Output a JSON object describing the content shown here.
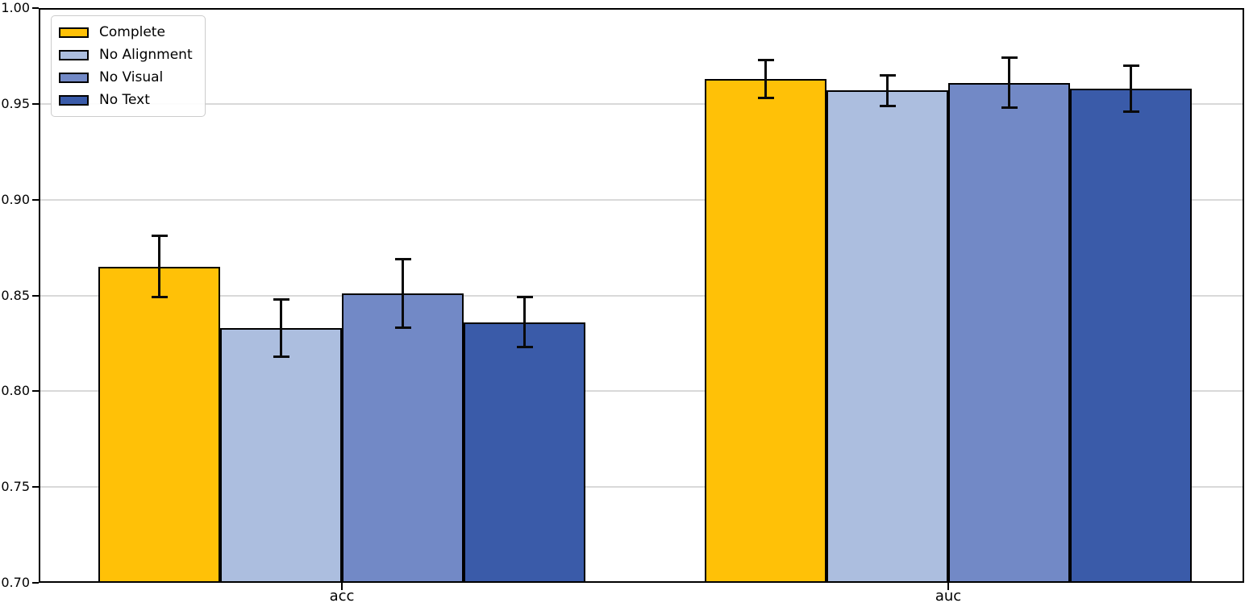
{
  "chart_data": {
    "type": "bar",
    "title": "",
    "xlabel": "",
    "ylabel": "",
    "categories": [
      "acc",
      "auc"
    ],
    "series": [
      {
        "name": "Complete",
        "color": "#FFC107",
        "values": [
          0.865,
          0.963
        ],
        "errors": [
          0.016,
          0.01
        ]
      },
      {
        "name": "No Alignment",
        "color": "#ACBEDF",
        "values": [
          0.833,
          0.957
        ],
        "errors": [
          0.015,
          0.008
        ]
      },
      {
        "name": "No Visual",
        "color": "#7289C6",
        "values": [
          0.851,
          0.961
        ],
        "errors": [
          0.018,
          0.013
        ]
      },
      {
        "name": "No Text",
        "color": "#3A5BA9",
        "values": [
          0.836,
          0.958
        ],
        "errors": [
          0.013,
          0.012
        ]
      }
    ],
    "ylim": [
      0.7,
      1.0
    ],
    "yticks": [
      0.7,
      0.75,
      0.8,
      0.85,
      0.9,
      0.95,
      1.0
    ],
    "ytick_labels": [
      "0.70",
      "0.75",
      "0.80",
      "0.85",
      "0.90",
      "0.95",
      "1.00"
    ],
    "bar_width": 0.2,
    "grid": "horizontal",
    "legend_position": "upper-left",
    "error_bars": true
  },
  "style_colors": {
    "grid": "#d9d9d9",
    "spine": "#000000",
    "error_bar": "#0a0a0a",
    "legend_border": "#cccccc",
    "background": "#ffffff"
  }
}
